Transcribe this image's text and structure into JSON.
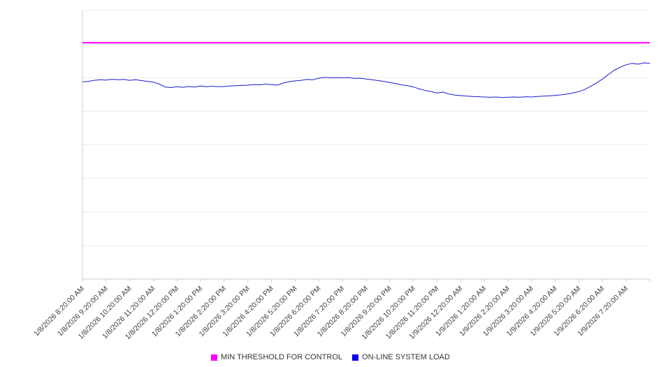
{
  "page": {
    "background": "#ffffff"
  },
  "chart_data": {
    "type": "line",
    "title": "",
    "xlabel": "",
    "ylabel": "",
    "grid": true,
    "grid_divisions": 8,
    "y_ticks_visible": false,
    "ylim": [
      0,
      100
    ],
    "legend_position": "bottom-center",
    "x_tick_labels": [
      "1/8/2026 8:20:00 AM",
      "1/8/2026 9:20:00 AM",
      "1/8/2026 10:20:00 AM",
      "1/8/2026 11:20:00 AM",
      "1/8/2026 12:20:00 PM",
      "1/8/2026 1:20:00 PM",
      "1/8/2026 2:20:00 PM",
      "1/8/2026 3:20:00 PM",
      "1/8/2026 4:20:00 PM",
      "1/8/2026 5:20:00 PM",
      "1/8/2026 6:20:00 PM",
      "1/8/2026 7:20:00 PM",
      "1/8/2026 8:20:00 PM",
      "1/8/2026 9:20:00 PM",
      "1/8/2026 10:20:00 PM",
      "1/8/2026 11:20:00 PM",
      "1/9/2026 12:20:00 AM",
      "1/9/2026 1:20:00 AM",
      "1/9/2026 2:20:00 AM",
      "1/9/2026 3:20:00 AM",
      "1/9/2026 4:20:00 AM",
      "1/9/2026 5:20:00 AM",
      "1/9/2026 6:20:00 AM",
      "1/9/2026 7:20:00 AM"
    ],
    "series": [
      {
        "name": "MIN THRESHOLD FOR CONTROL",
        "type": "constant",
        "color": "#ff00ff",
        "stroke_width": 2,
        "value": 88
      },
      {
        "name": "ON-LINE SYSTEM LOAD",
        "type": "line",
        "color": "#1a1acd",
        "stroke_width": 1,
        "x_hours_start": 0,
        "x_hours_step": 0.25,
        "values": [
          73.4,
          73.6,
          74.0,
          74.2,
          74.1,
          74.4,
          74.2,
          74.3,
          74.0,
          74.2,
          73.9,
          73.6,
          73.3,
          72.6,
          71.5,
          71.3,
          71.6,
          71.4,
          71.7,
          71.5,
          71.9,
          71.6,
          71.8,
          71.6,
          71.7,
          71.9,
          72.0,
          72.1,
          72.2,
          72.4,
          72.3,
          72.6,
          72.4,
          72.2,
          73.0,
          73.5,
          73.8,
          74.0,
          74.3,
          74.2,
          74.8,
          75.1,
          74.9,
          75.0,
          74.9,
          75.0,
          74.7,
          74.8,
          74.5,
          74.2,
          73.9,
          73.6,
          73.2,
          72.8,
          72.3,
          72.0,
          71.5,
          70.8,
          70.2,
          69.8,
          69.3,
          69.6,
          68.9,
          68.5,
          68.3,
          68.1,
          68.0,
          67.9,
          67.8,
          67.7,
          67.8,
          67.6,
          67.7,
          67.8,
          67.7,
          67.9,
          67.8,
          68.0,
          68.1,
          68.2,
          68.4,
          68.6,
          68.9,
          69.3,
          69.8,
          70.6,
          71.8,
          73.0,
          74.5,
          76.2,
          77.8,
          78.9,
          79.8,
          80.3,
          80.0,
          80.5,
          80.3
        ]
      }
    ],
    "colors": {
      "grid": "#ececec",
      "axis": "#cccccc",
      "label_text": "#404040"
    }
  },
  "legend": {
    "items": [
      {
        "label": "MIN THRESHOLD FOR CONTROL",
        "color": "#ff00ff"
      },
      {
        "label": "ON-LINE SYSTEM LOAD",
        "color": "#0000ee"
      }
    ]
  }
}
